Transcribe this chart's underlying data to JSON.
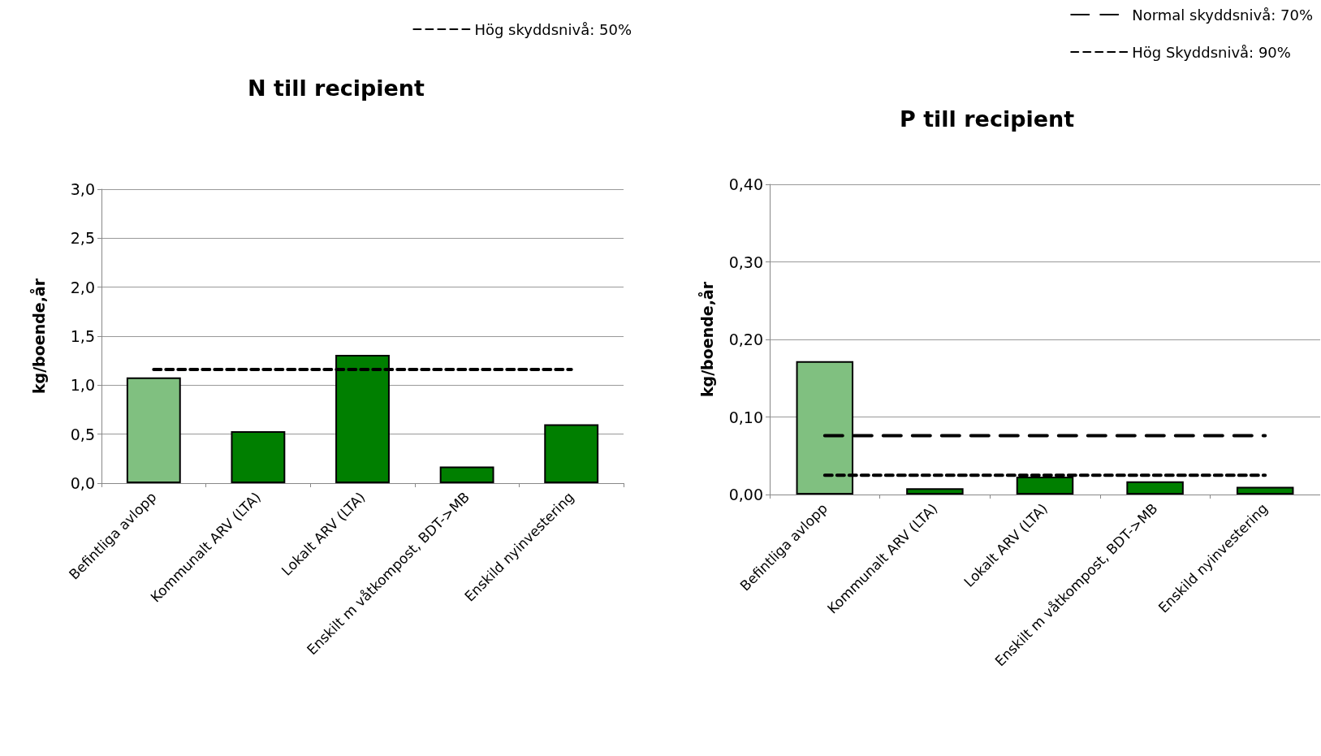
{
  "chart_data": [
    {
      "type": "bar",
      "title": "N till recipient",
      "ylabel": "kg/boende,år",
      "categories": [
        "Befintliga avlopp",
        "Kommunalt ARV (LTA)",
        "Lokalt ARV (LTA)",
        "Enskilt m våtkompost, BDT->MB",
        "Enskild nyinvestering"
      ],
      "series": [
        {
          "colors": [
            "#80c080",
            "#007f00",
            "#007f00",
            "#007f00",
            "#007f00"
          ],
          "values": [
            1.08,
            0.53,
            1.31,
            0.17,
            0.6
          ]
        },
        {
          "type": "line",
          "name": "Hög skyddsnivå: 50%",
          "color": "#000000",
          "line_style": "dotted",
          "values": [
            1.16,
            1.16,
            1.16,
            1.16,
            1.16
          ]
        }
      ],
      "ylim": [
        0,
        3.0
      ],
      "yticks": [
        {
          "value": 0,
          "label": "0,0"
        },
        {
          "value": 0.5,
          "label": "0,5"
        },
        {
          "value": 1.0,
          "label": "1,0"
        },
        {
          "value": 1.5,
          "label": "1,5"
        },
        {
          "value": 2.0,
          "label": "2,0"
        },
        {
          "value": 2.5,
          "label": "2,5"
        },
        {
          "value": 3.0,
          "label": "3,0"
        }
      ],
      "grid": "y",
      "legend": "top right"
    },
    {
      "type": "bar",
      "title": "P till recipient",
      "ylabel": "kg/boende,år",
      "categories": [
        "Befintliga avlopp",
        "Kommunalt ARV (LTA)",
        "Lokalt ARV (LTA)",
        "Enskilt m våtkompost, BDT->MB",
        "Enskild nyinvestering"
      ],
      "series": [
        {
          "colors": [
            "#80c080",
            "#007f00",
            "#007f00",
            "#007f00",
            "#007f00"
          ],
          "values": [
            0.172,
            0.008,
            0.023,
            0.017,
            0.01
          ]
        },
        {
          "type": "line",
          "name": "Normal skyddsnivå: 70%",
          "color": "#000000",
          "line_style": "dashed",
          "values": [
            0.076,
            0.076,
            0.076,
            0.076,
            0.076
          ]
        },
        {
          "type": "line",
          "name": "Hög Skyddsnivå: 90%",
          "color": "#000000",
          "line_style": "dotted",
          "values": [
            0.025,
            0.025,
            0.025,
            0.025,
            0.025
          ]
        }
      ],
      "ylim": [
        0,
        0.4
      ],
      "yticks": [
        {
          "value": 0,
          "label": "0,00"
        },
        {
          "value": 0.1,
          "label": "0,10"
        },
        {
          "value": 0.2,
          "label": "0,20"
        },
        {
          "value": 0.3,
          "label": "0,30"
        },
        {
          "value": 0.4,
          "label": "0,40"
        }
      ],
      "grid": "y",
      "legend": "top right"
    }
  ]
}
